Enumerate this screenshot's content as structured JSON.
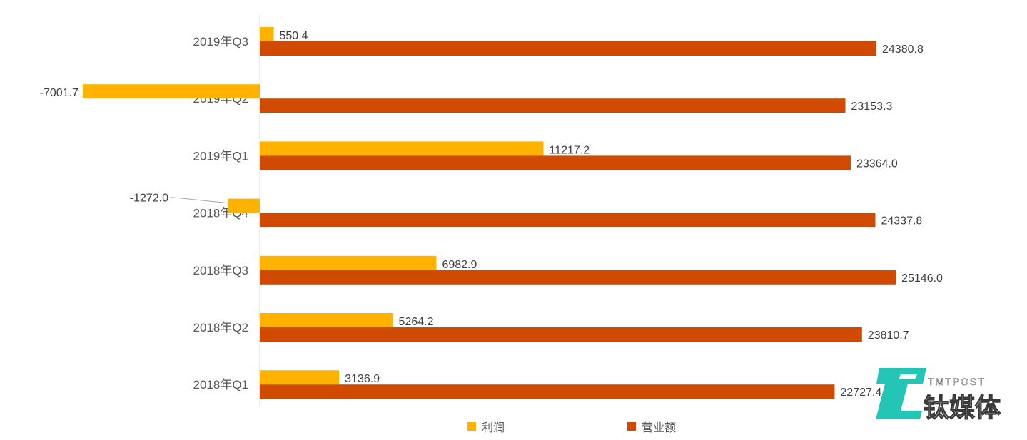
{
  "chart_data": {
    "type": "bar",
    "orientation": "horizontal",
    "categories": [
      "2018年Q1",
      "2018年Q2",
      "2018年Q3",
      "2018年Q4",
      "2019年Q1",
      "2019年Q2",
      "2019年Q3"
    ],
    "series": [
      {
        "name": "利润",
        "color": "#FFB300",
        "values": [
          3136.9,
          5264.2,
          6982.9,
          -1272.0,
          11217.2,
          -7001.7,
          550.4
        ],
        "labels": [
          "3136.9",
          "5264.2",
          "6982.9",
          "-1272.0",
          "11217.2",
          "-7001.7",
          "550.4"
        ]
      },
      {
        "name": "营业额",
        "color": "#D04A02",
        "values": [
          22727.4,
          23810.7,
          25146.0,
          24337.8,
          23364.0,
          23153.3,
          24380.8
        ],
        "labels": [
          "22727.4",
          "23810.7",
          "25146.0",
          "24337.8",
          "23364.0",
          "23153.3",
          "24380.8"
        ]
      }
    ],
    "legend_position": "bottom",
    "grid": false
  },
  "watermark": {
    "brand": "钛媒体",
    "sub": "TMTPOST",
    "accent": "#17c3b2"
  }
}
